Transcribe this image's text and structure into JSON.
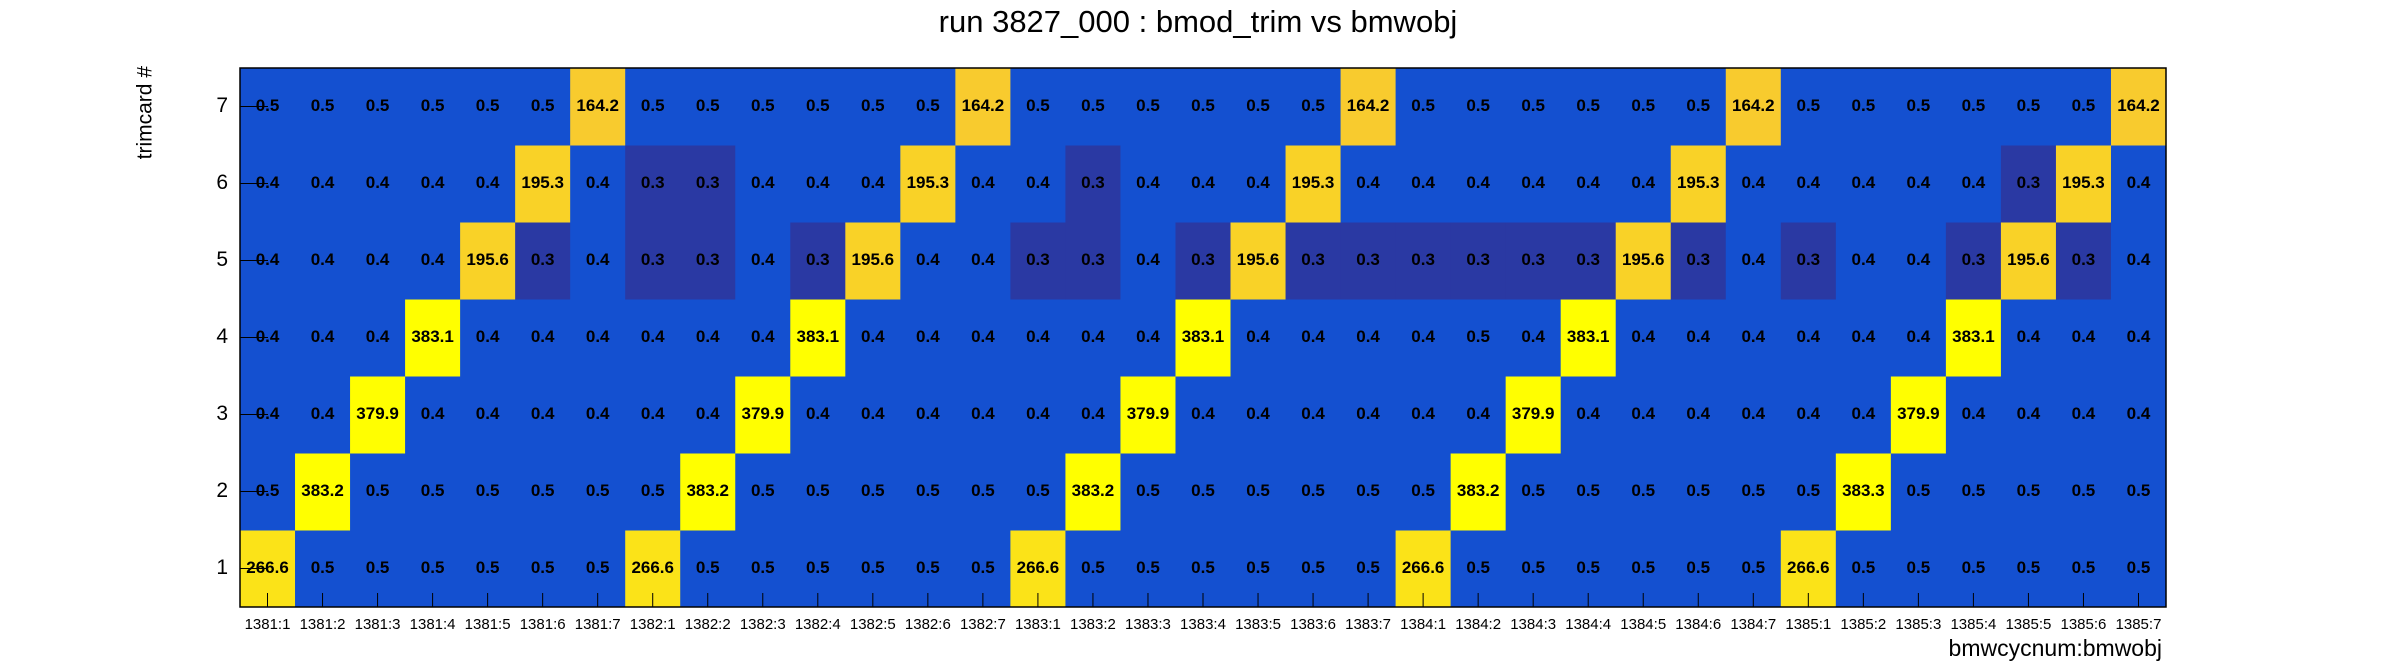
{
  "chart_data": {
    "type": "heatmap",
    "title": "run 3827_000 : bmod_trim vs bmwobj",
    "xlabel": "bmwcycnum:bmwobj",
    "ylabel": "trimcard #",
    "categories": [
      "1381:1",
      "1381:2",
      "1381:3",
      "1381:4",
      "1381:5",
      "1381:6",
      "1381:7",
      "1382:1",
      "1382:2",
      "1382:3",
      "1382:4",
      "1382:5",
      "1382:6",
      "1382:7",
      "1383:1",
      "1383:2",
      "1383:3",
      "1383:4",
      "1383:5",
      "1383:6",
      "1383:7",
      "1384:1",
      "1384:2",
      "1384:3",
      "1384:4",
      "1384:5",
      "1384:6",
      "1384:7",
      "1385:1",
      "1385:2",
      "1385:3",
      "1385:4",
      "1385:5",
      "1385:6",
      "1385:7"
    ],
    "ycategories": [
      1,
      2,
      3,
      4,
      5,
      6,
      7
    ],
    "values": [
      [
        266.6,
        0.5,
        0.5,
        0.5,
        0.5,
        0.5,
        0.5,
        266.6,
        0.5,
        0.5,
        0.5,
        0.5,
        0.5,
        0.5,
        266.6,
        0.5,
        0.5,
        0.5,
        0.5,
        0.5,
        0.5,
        266.6,
        0.5,
        0.5,
        0.5,
        0.5,
        0.5,
        0.5,
        266.6,
        0.5,
        0.5,
        0.5,
        0.5,
        0.5,
        0.5
      ],
      [
        0.5,
        383.2,
        0.5,
        0.5,
        0.5,
        0.5,
        0.5,
        0.5,
        383.2,
        0.5,
        0.5,
        0.5,
        0.5,
        0.5,
        0.5,
        383.2,
        0.5,
        0.5,
        0.5,
        0.5,
        0.5,
        0.5,
        383.2,
        0.5,
        0.5,
        0.5,
        0.5,
        0.5,
        0.5,
        383.3,
        0.5,
        0.5,
        0.5,
        0.5,
        0.5
      ],
      [
        0.4,
        0.4,
        379.9,
        0.4,
        0.4,
        0.4,
        0.4,
        0.4,
        0.4,
        379.9,
        0.4,
        0.4,
        0.4,
        0.4,
        0.4,
        0.4,
        379.9,
        0.4,
        0.4,
        0.4,
        0.4,
        0.4,
        0.4,
        379.9,
        0.4,
        0.4,
        0.4,
        0.4,
        0.4,
        0.4,
        379.9,
        0.4,
        0.4,
        0.4,
        0.4
      ],
      [
        0.4,
        0.4,
        0.4,
        383.1,
        0.4,
        0.4,
        0.4,
        0.4,
        0.4,
        0.4,
        383.1,
        0.4,
        0.4,
        0.4,
        0.4,
        0.4,
        0.4,
        383.1,
        0.4,
        0.4,
        0.4,
        0.4,
        0.5,
        0.4,
        383.1,
        0.4,
        0.4,
        0.4,
        0.4,
        0.4,
        0.4,
        383.1,
        0.4,
        0.4,
        0.4
      ],
      [
        0.4,
        0.4,
        0.4,
        0.4,
        195.6,
        0.3,
        0.4,
        0.3,
        0.3,
        0.4,
        0.3,
        195.6,
        0.4,
        0.4,
        0.3,
        0.3,
        0.4,
        0.3,
        195.6,
        0.3,
        0.3,
        0.3,
        0.3,
        0.3,
        0.3,
        195.6,
        0.3,
        0.4,
        0.3,
        0.4,
        0.4,
        0.3,
        195.6,
        0.3,
        0.4
      ],
      [
        0.4,
        0.4,
        0.4,
        0.4,
        0.4,
        195.3,
        0.4,
        0.3,
        0.3,
        0.4,
        0.4,
        0.4,
        195.3,
        0.4,
        0.4,
        0.3,
        0.4,
        0.4,
        0.4,
        195.3,
        0.4,
        0.4,
        0.4,
        0.4,
        0.4,
        0.4,
        195.3,
        0.4,
        0.4,
        0.4,
        0.4,
        0.4,
        0.3,
        195.3,
        0.4
      ],
      [
        0.5,
        0.5,
        0.5,
        0.5,
        0.5,
        0.5,
        164.2,
        0.5,
        0.5,
        0.5,
        0.5,
        0.5,
        0.5,
        164.2,
        0.5,
        0.5,
        0.5,
        0.5,
        0.5,
        0.5,
        164.2,
        0.5,
        0.5,
        0.5,
        0.5,
        0.5,
        0.5,
        164.2,
        0.5,
        0.5,
        0.5,
        0.5,
        0.5,
        0.5,
        164.2
      ]
    ]
  }
}
